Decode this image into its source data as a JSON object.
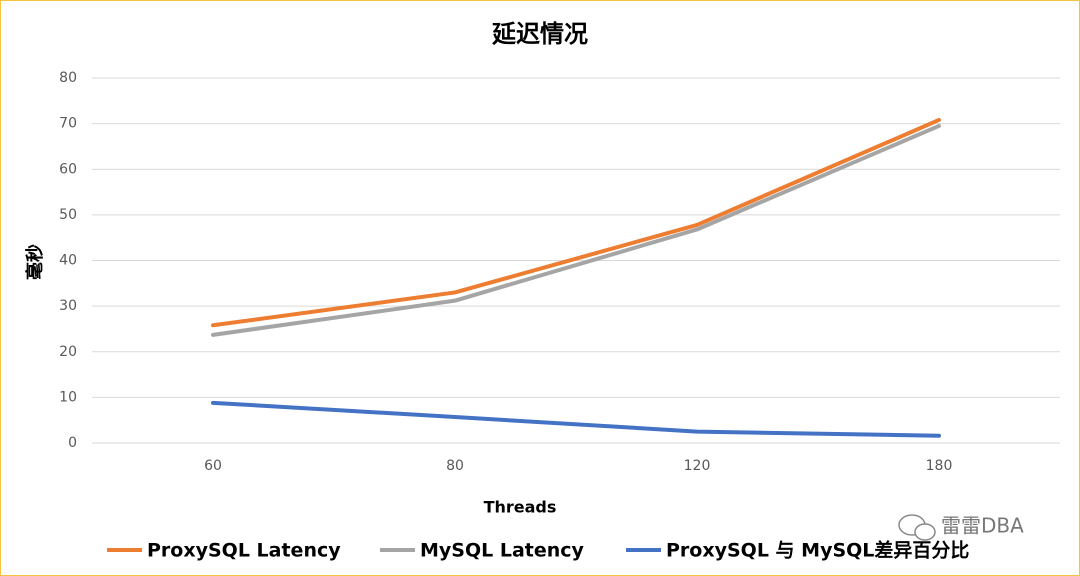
{
  "chart_data": {
    "type": "line",
    "title": "延迟情况",
    "x_label": "Threads",
    "y_label": "毫秒",
    "categories": [
      "60",
      "80",
      "120",
      "180"
    ],
    "series": [
      {
        "name": "ProxySQL Latency",
        "color": "#ed7d31",
        "values": [
          25.8,
          33,
          47.8,
          70.8
        ]
      },
      {
        "name": "MySQL Latency",
        "color": "#a5a5a5",
        "values": [
          23.7,
          31.2,
          46.8,
          69.5
        ]
      },
      {
        "name": "ProxySQL 与 MySQL差异百分比",
        "color": "#4472c4",
        "values": [
          8.8,
          5.7,
          2.5,
          1.6
        ]
      }
    ],
    "ylim": [
      0,
      80
    ],
    "yticks": [
      0,
      10,
      20,
      30,
      40,
      50,
      60,
      70,
      80
    ],
    "grid": true,
    "legend": "bottom",
    "watermark": "雷雷DBA"
  }
}
